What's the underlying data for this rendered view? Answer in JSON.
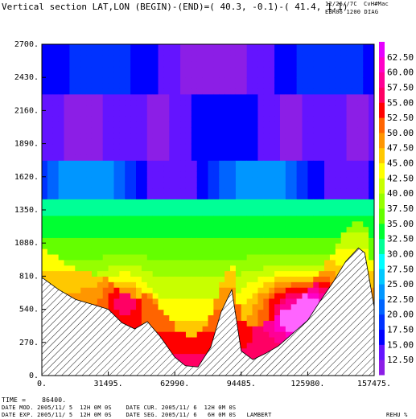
{
  "header": {
    "title": "Vertical section LAT,LON (BEGIN)-(END)=( 40.3, -0.1)-( 41.4, 1.1)",
    "date_stamp": "12/26//7C",
    "user": "CvH#Mac",
    "experiment": "EBR06 1200 DIAG"
  },
  "footer": {
    "time_line": "TIME =    86400.",
    "line2": "DATE MOD. 2005/11/ 5  12H 0M 0S    DATE CUR. 2005/11/ 6  12H 0M 0S",
    "line3": "DATE EXP. 2005/11/ 5  12H 0M 0S    DATE SEG. 2005/11/ 6   6H 0M 0S   LAMBERT",
    "variable": "REHU %"
  },
  "colors": {
    "palette": [
      "#8c1ee6",
      "#6414ff",
      "#0000ff",
      "#0032ff",
      "#0064ff",
      "#0096ff",
      "#00c8ff",
      "#00ffff",
      "#00ff96",
      "#00ff32",
      "#64ff00",
      "#96ff00",
      "#c8ff00",
      "#ffff00",
      "#ffc800",
      "#ff9600",
      "#ff6400",
      "#ff0000",
      "#ff0064",
      "#ff0096",
      "#ff00c8",
      "#ff64ff",
      "#ffffff"
    ],
    "colorbar_top": "#e600ff"
  },
  "chart_data": {
    "type": "heatmap",
    "title": "Vertical section LAT,LON (BEGIN)-(END)=( 40.3, -0.1)-( 41.4, 1.1)",
    "xlabel": "",
    "ylabel": "",
    "x_ticks": [
      0,
      31495,
      62990,
      94485,
      125980,
      157475
    ],
    "x_tick_labels": [
      "0.",
      "31495.",
      "62990.",
      "94485.",
      "125980.",
      "157475."
    ],
    "y_ticks": [
      0,
      270,
      540,
      810,
      1080,
      1350,
      1620,
      1890,
      2160,
      2430,
      2700
    ],
    "y_tick_labels": [
      "0.",
      "270.",
      "540.",
      "810.",
      "1080.",
      "1350.",
      "1620.",
      "1890.",
      "2160.",
      "2430.",
      "2700."
    ],
    "xlim": [
      0,
      157475
    ],
    "ylim": [
      0,
      2700
    ],
    "colorbar_levels": [
      10,
      12.5,
      15,
      17.5,
      20,
      22.5,
      25,
      27.5,
      30,
      32.5,
      35,
      37.5,
      40,
      42.5,
      45,
      47.5,
      50,
      52.5,
      55,
      57.5,
      60,
      62.5,
      65
    ],
    "colorbar_labels": [
      "12.50",
      "15.00",
      "17.50",
      "20.00",
      "22.50",
      "25.00",
      "27.50",
      "30.00",
      "32.50",
      "35.00",
      "37.50",
      "40.00",
      "42.50",
      "45.00",
      "47.50",
      "50.00",
      "52.50",
      "55.00",
      "57.50",
      "60.00",
      "62.50"
    ],
    "colorbar_units": "REHU %",
    "terrain": {
      "x": [
        0,
        8000,
        16000,
        24000,
        31495,
        38000,
        44000,
        50000,
        56000,
        62990,
        68000,
        74000,
        80000,
        85000,
        90000,
        94485,
        100000,
        106000,
        112000,
        118000,
        125980,
        132000,
        138000,
        144000,
        150000,
        153000,
        157475
      ],
      "z": [
        800,
        700,
        620,
        580,
        540,
        430,
        380,
        440,
        320,
        150,
        80,
        70,
        230,
        520,
        700,
        200,
        130,
        180,
        240,
        330,
        450,
        610,
        760,
        930,
        1040,
        1000,
        560
      ]
    },
    "field_summary": [
      {
        "height": 2600,
        "rehu": 15
      },
      {
        "height": 2100,
        "rehu": 12
      },
      {
        "height": 1700,
        "rehu": 15
      },
      {
        "height": 1400,
        "rehu": 32
      },
      {
        "height": 1100,
        "rehu": 38
      },
      {
        "height": 900,
        "rehu": 45
      },
      {
        "height": 700,
        "rehu": 55
      }
    ],
    "grid": false,
    "legend_placement": "right"
  }
}
